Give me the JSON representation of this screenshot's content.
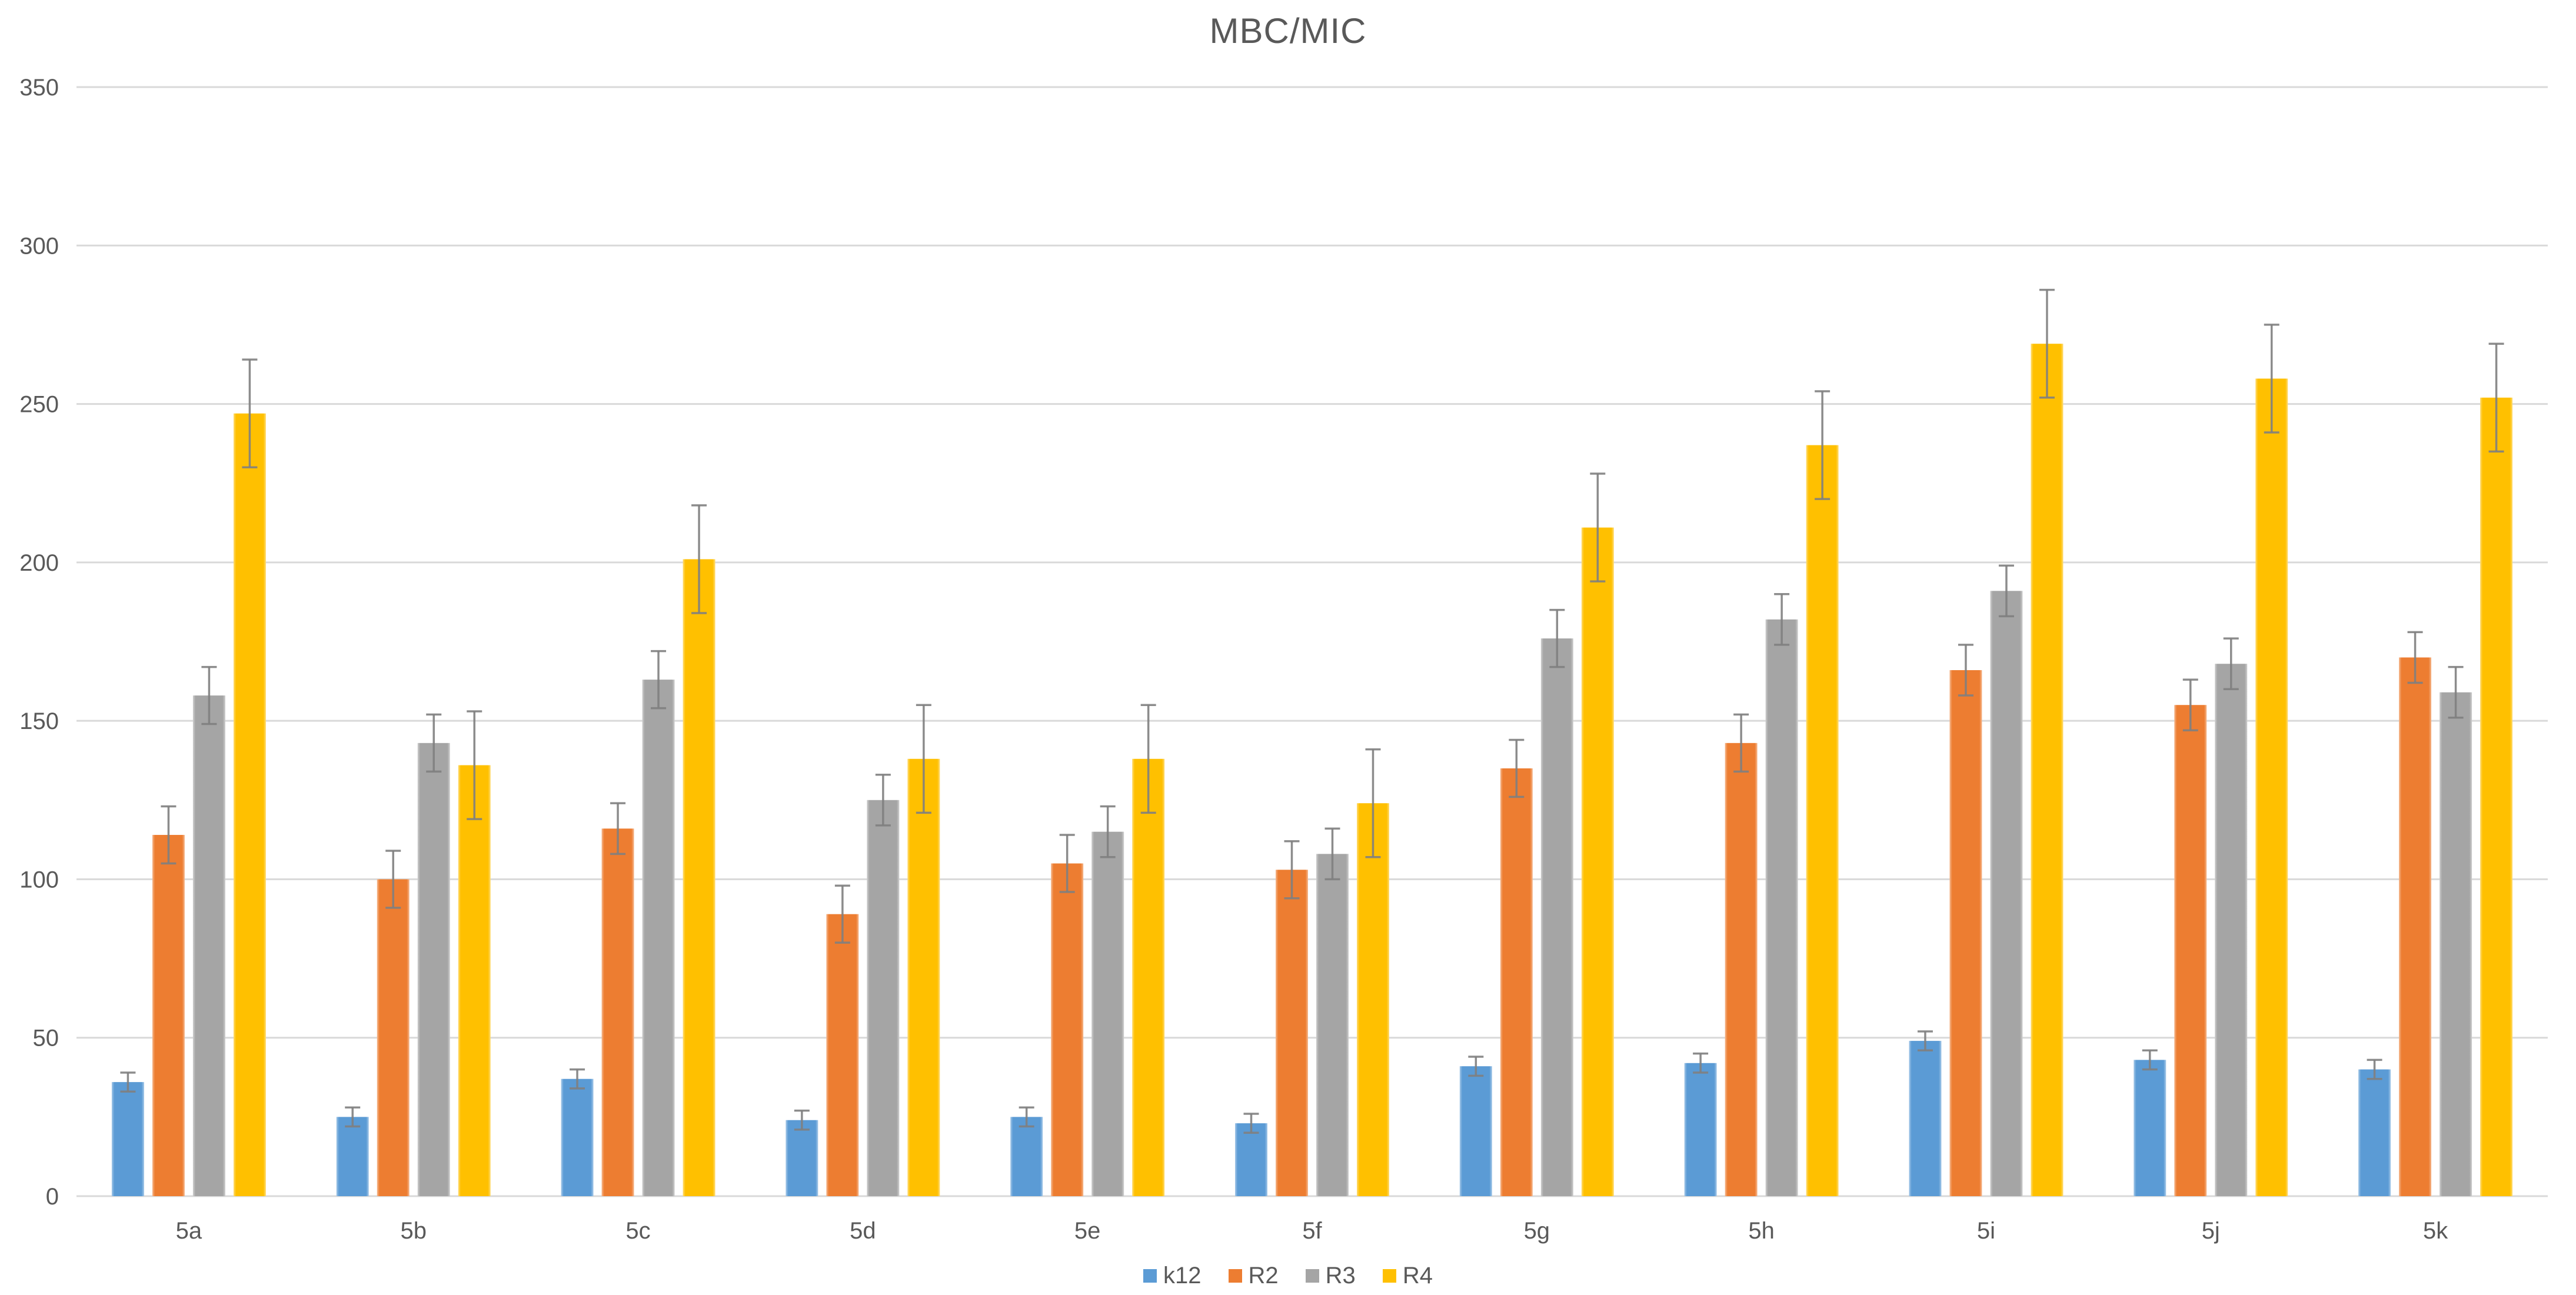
{
  "chart_data": {
    "type": "bar",
    "title": "MBC/MIC",
    "categories": [
      "5a",
      "5b",
      "5c",
      "5d",
      "5e",
      "5f",
      "5g",
      "5h",
      "5i",
      "5j",
      "5k"
    ],
    "series": [
      {
        "name": "k12",
        "color": "#5B9BD5",
        "values": [
          36,
          25,
          37,
          24,
          25,
          23,
          41,
          42,
          49,
          43,
          40
        ],
        "errors": [
          3,
          3,
          3,
          3,
          3,
          3,
          3,
          3,
          3,
          3,
          3
        ]
      },
      {
        "name": "R2",
        "color": "#ED7D31",
        "values": [
          114,
          100,
          116,
          89,
          105,
          103,
          135,
          143,
          166,
          155,
          170
        ],
        "errors": [
          9,
          9,
          8,
          9,
          9,
          9,
          9,
          9,
          8,
          8,
          8
        ]
      },
      {
        "name": "R3",
        "color": "#A5A5A5",
        "values": [
          158,
          143,
          163,
          125,
          115,
          108,
          176,
          182,
          191,
          168,
          159
        ],
        "errors": [
          9,
          9,
          9,
          8,
          8,
          8,
          9,
          8,
          8,
          8,
          8
        ]
      },
      {
        "name": "R4",
        "color": "#FFC000",
        "values": [
          247,
          136,
          201,
          138,
          138,
          124,
          211,
          237,
          269,
          258,
          252
        ],
        "errors": [
          17,
          17,
          17,
          17,
          17,
          17,
          17,
          17,
          17,
          17,
          17
        ]
      }
    ],
    "yticks": [
      0,
      50,
      100,
      150,
      200,
      250,
      300,
      350
    ],
    "ylim": [
      0,
      350
    ],
    "ytick_step": 50,
    "grid": true,
    "xlabel": "",
    "ylabel": "",
    "legend_position": "bottom",
    "text_color": "#595959",
    "grid_color": "#D9D9D9",
    "error_bar_color": "#7F7F7F",
    "background": "#FFFFFF"
  }
}
